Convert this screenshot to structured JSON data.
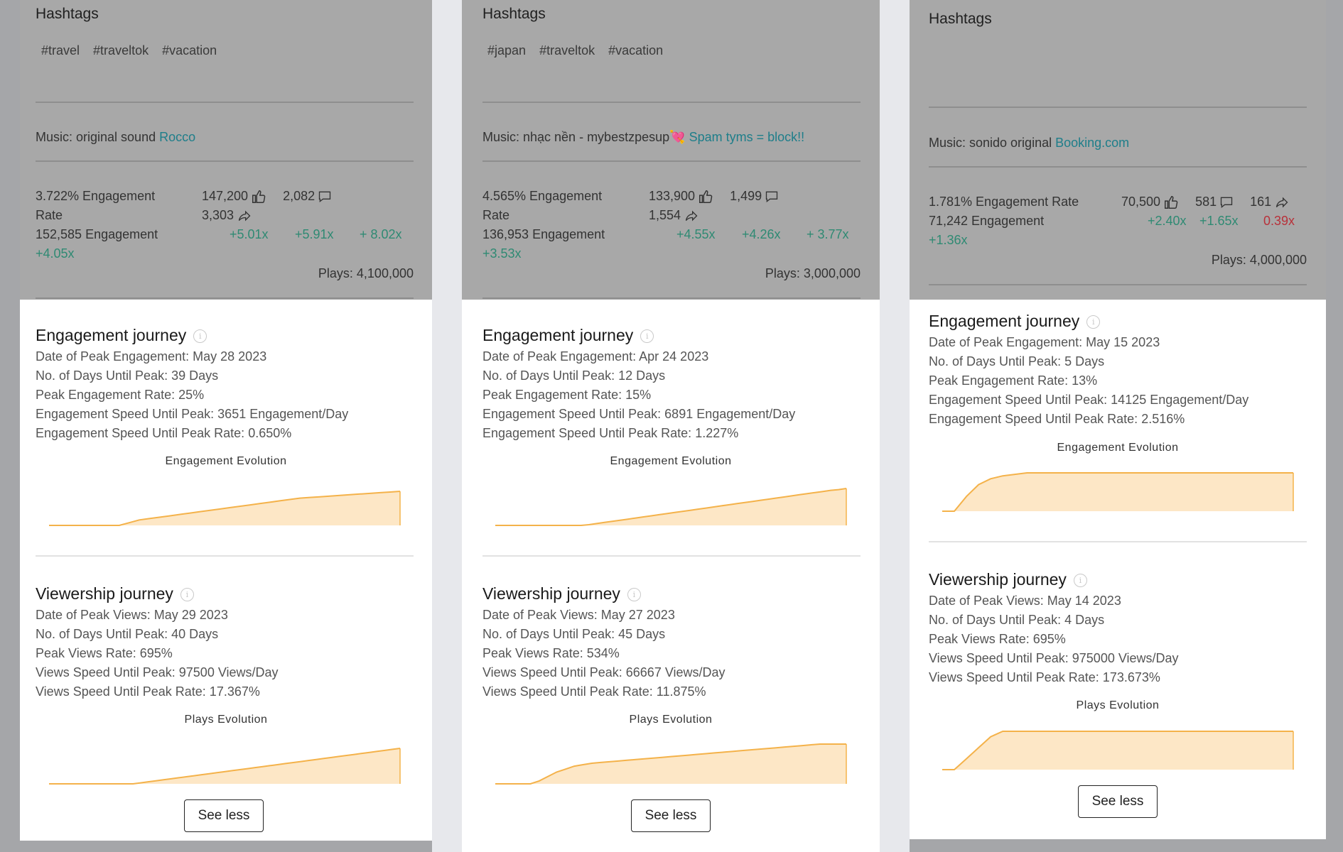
{
  "cards": [
    {
      "hashtags_label": "Hashtags",
      "hashtags": [
        "#travel",
        "#traveltok",
        "#vacation"
      ],
      "music_prefix": "Music: original sound",
      "music_link": "Rocco",
      "engagement_rate_label": "3.722% Engagement Rate",
      "engagement_count_label": "152,585 Engagement",
      "likes": "147,200",
      "comments": "2,082",
      "shares": "3,303",
      "mult_likes": "+5.01x",
      "mult_comments": "+5.91x",
      "mult_shares": "+ 8.02x",
      "mult_engagement": "+4.05x",
      "plays": "Plays: 4,100,000",
      "engagement": {
        "title": "Engagement journey",
        "peak_date": "Date of Peak Engagement: May 28 2023",
        "days_until_peak": "No. of Days Until Peak: 39 Days",
        "peak_rate": "Peak Engagement Rate: 25%",
        "speed": "Engagement Speed Until Peak: 3651 Engagement/Day",
        "speed_rate": "Engagement Speed Until Peak Rate: 0.650%",
        "chart_title": "Engagement Evolution"
      },
      "viewership": {
        "title": "Viewership journey",
        "peak_date": "Date of Peak Views: May 29 2023",
        "days_until_peak": "No. of Days Until Peak: 40 Days",
        "peak_rate": "Peak Views Rate: 695%",
        "speed": "Views Speed Until Peak: 97500 Views/Day",
        "speed_rate": "Views Speed Until Peak Rate: 17.367%",
        "chart_title": "Plays Evolution"
      },
      "see_less": "See less"
    },
    {
      "hashtags_label": "Hashtags",
      "hashtags": [
        "#japan",
        "#traveltok",
        "#vacation"
      ],
      "music_prefix": "Music: nhạc nền - mybestzpesup💘",
      "music_link": "Spam tyms = block!!",
      "engagement_rate_label": "4.565% Engagement Rate",
      "engagement_count_label": "136,953 Engagement",
      "likes": "133,900",
      "comments": "1,499",
      "shares": "1,554",
      "mult_likes": "+4.55x",
      "mult_comments": "+4.26x",
      "mult_shares": "+ 3.77x",
      "mult_engagement": "+3.53x",
      "plays": "Plays: 3,000,000",
      "engagement": {
        "title": "Engagement journey",
        "peak_date": "Date of Peak Engagement: Apr 24 2023",
        "days_until_peak": "No. of Days Until Peak: 12 Days",
        "peak_rate": "Peak Engagement Rate: 15%",
        "speed": "Engagement Speed Until Peak: 6891 Engagement/Day",
        "speed_rate": "Engagement Speed Until Peak Rate: 1.227%",
        "chart_title": "Engagement Evolution"
      },
      "viewership": {
        "title": "Viewership journey",
        "peak_date": "Date of Peak Views: May 27 2023",
        "days_until_peak": "No. of Days Until Peak: 45 Days",
        "peak_rate": "Peak Views Rate: 534%",
        "speed": "Views Speed Until Peak: 66667 Views/Day",
        "speed_rate": "Views Speed Until Peak Rate: 11.875%",
        "chart_title": "Plays Evolution"
      },
      "see_less": "See less"
    },
    {
      "hashtags_label": "Hashtags",
      "hashtags": [],
      "music_prefix": "Music: sonido original",
      "music_link": "Booking.com",
      "engagement_rate_label": "1.781% Engagement Rate",
      "engagement_count_label": "71,242 Engagement",
      "likes": "70,500",
      "comments": "581",
      "shares": "161",
      "mult_likes": "+2.40x",
      "mult_comments": "+1.65x",
      "mult_shares": "0.39x",
      "mult_engagement": "+1.36x",
      "plays": "Plays: 4,000,000",
      "engagement": {
        "title": "Engagement journey",
        "peak_date": "Date of Peak Engagement: May 15 2023",
        "days_until_peak": "No. of Days Until Peak: 5 Days",
        "peak_rate": "Peak Engagement Rate: 13%",
        "speed": "Engagement Speed Until Peak: 14125 Engagement/Day",
        "speed_rate": "Engagement Speed Until Peak Rate: 2.516%",
        "chart_title": "Engagement Evolution"
      },
      "viewership": {
        "title": "Viewership journey",
        "peak_date": "Date of Peak Views: May 14 2023",
        "days_until_peak": "No. of Days Until Peak: 4 Days",
        "peak_rate": "Peak Views Rate: 695%",
        "speed": "Views Speed Until Peak: 975000 Views/Day",
        "speed_rate": "Views Speed Until Peak Rate: 173.673%",
        "chart_title": "Plays Evolution"
      },
      "see_less": "See less"
    }
  ],
  "colors": {
    "accent_link": "#1e7e8a",
    "positive": "#2f8a73",
    "negative": "#b8313a",
    "chart_line": "#f4b24a",
    "chart_fill": "#fde7c6"
  },
  "chart_data": [
    {
      "type": "area",
      "series": [
        {
          "values": [
            0,
            0,
            0,
            0,
            0,
            0,
            0,
            0,
            2,
            4,
            5,
            6,
            7,
            8,
            9,
            10,
            11,
            12,
            13,
            14,
            15,
            16,
            17,
            18,
            19,
            20,
            20.5,
            21,
            21.5,
            22,
            22.5,
            23,
            23.5,
            24,
            24.5,
            25
          ]
        }
      ]
    },
    {
      "type": "area",
      "series": [
        {
          "values": [
            0,
            0,
            0,
            0,
            0,
            0,
            0,
            0,
            0,
            0,
            0,
            0,
            2,
            5,
            8,
            11,
            14,
            17,
            20,
            23,
            26,
            29,
            32,
            35,
            38,
            41,
            44,
            47,
            50,
            53,
            56,
            59,
            62,
            65,
            68,
            71,
            74,
            77,
            80,
            83,
            86,
            89,
            92,
            95,
            97,
            100
          ]
        }
      ]
    },
    {
      "type": "area",
      "series": [
        {
          "values": [
            0,
            0,
            5,
            9,
            11,
            12,
            12.5,
            13,
            13,
            13,
            13,
            13,
            13,
            13,
            13,
            13,
            13,
            13,
            13,
            13,
            13,
            13,
            13,
            13,
            13,
            13,
            13,
            13,
            13,
            13
          ]
        }
      ]
    },
    {
      "type": "area",
      "series": [
        {
          "values": [
            0,
            0,
            0,
            0,
            0,
            0,
            0,
            0,
            0,
            0,
            0,
            0,
            2,
            4,
            6,
            8,
            10,
            12,
            14,
            16,
            18,
            20,
            22,
            24,
            26,
            28,
            30,
            32,
            34,
            36,
            38,
            40,
            42,
            44,
            46,
            48,
            50,
            52,
            54,
            56,
            58,
            60,
            62,
            64,
            66,
            68,
            70
          ]
        }
      ]
    },
    {
      "type": "area",
      "series": [
        {
          "values": [
            0,
            0,
            0,
            0,
            0,
            2,
            5,
            8,
            10,
            12,
            13,
            14,
            14.5,
            15,
            15.5,
            16,
            16.5,
            17,
            17.5,
            18,
            18.5,
            19,
            19.5,
            20,
            20.5,
            21,
            21.5,
            22,
            22.5,
            23,
            23.5,
            24,
            24.5,
            25,
            25.5,
            26,
            26.5,
            27,
            27,
            27,
            27
          ]
        }
      ]
    },
    {
      "type": "area",
      "series": [
        {
          "values": [
            0,
            0,
            2,
            4,
            6,
            7,
            7,
            7,
            7,
            7,
            7,
            7,
            7,
            7,
            7,
            7,
            7,
            7,
            7,
            7,
            7,
            7,
            7,
            7,
            7,
            7,
            7,
            7,
            7,
            7
          ]
        }
      ]
    }
  ]
}
